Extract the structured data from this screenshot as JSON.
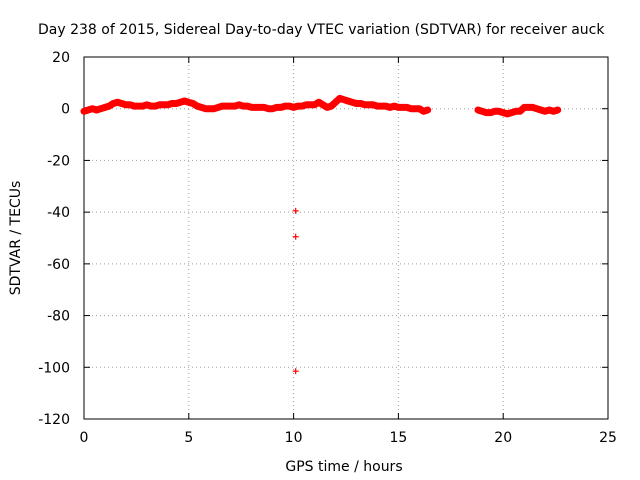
{
  "chart_data": {
    "type": "scatter",
    "title": "Day 238 of 2015, Sidereal Day-to-day VTEC variation (SDTVAR) for receiver auck",
    "xlabel": "GPS time / hours",
    "ylabel": "SDTVAR / TECUs",
    "xlim": [
      0,
      25
    ],
    "ylim": [
      -120,
      20
    ],
    "xticks": [
      0,
      5,
      10,
      15,
      20,
      25
    ],
    "yticks": [
      -120,
      -100,
      -80,
      -60,
      -40,
      -20,
      0,
      20
    ],
    "x_tick_labels": [
      "0",
      "5",
      "10",
      "15",
      "20",
      "25"
    ],
    "y_tick_labels": [
      "-120",
      "-100",
      "-80",
      "-60",
      "-40",
      "-20",
      "0",
      "20"
    ],
    "grid": true,
    "marker": "+",
    "color": "#ff0000",
    "series": [
      {
        "name": "SDTVAR",
        "x": [
          0.0,
          0.2,
          0.4,
          0.6,
          0.8,
          1.0,
          1.2,
          1.4,
          1.6,
          1.8,
          2.0,
          2.2,
          2.4,
          2.6,
          2.8,
          3.0,
          3.2,
          3.4,
          3.6,
          3.8,
          4.0,
          4.2,
          4.4,
          4.6,
          4.8,
          5.0,
          5.2,
          5.4,
          5.6,
          5.8,
          6.0,
          6.2,
          6.4,
          6.6,
          6.8,
          7.0,
          7.2,
          7.4,
          7.6,
          7.8,
          8.0,
          8.2,
          8.4,
          8.6,
          8.8,
          9.0,
          9.2,
          9.4,
          9.6,
          9.8,
          10.0,
          10.1,
          10.1,
          10.1,
          10.2,
          10.4,
          10.6,
          10.8,
          11.0,
          11.2,
          11.4,
          11.6,
          11.8,
          12.0,
          12.2,
          12.4,
          12.6,
          12.8,
          13.0,
          13.2,
          13.4,
          13.6,
          13.8,
          14.0,
          14.2,
          14.4,
          14.6,
          14.8,
          15.0,
          15.2,
          15.4,
          15.6,
          15.8,
          16.0,
          16.2,
          16.4,
          18.8,
          19.0,
          19.2,
          19.4,
          19.6,
          19.8,
          20.0,
          20.2,
          20.4,
          20.6,
          20.8,
          21.0,
          21.2,
          21.4,
          21.6,
          21.8,
          22.0,
          22.2,
          22.4,
          22.6
        ],
        "y": [
          -1.0,
          -0.5,
          0.0,
          -0.5,
          0.0,
          0.5,
          1.0,
          2.0,
          2.5,
          2.0,
          1.5,
          1.5,
          1.0,
          1.0,
          1.0,
          1.5,
          1.0,
          1.0,
          1.5,
          1.5,
          1.5,
          2.0,
          2.0,
          2.5,
          3.0,
          2.5,
          2.0,
          1.0,
          0.5,
          0.0,
          0.0,
          0.0,
          0.5,
          1.0,
          1.0,
          1.0,
          1.0,
          1.5,
          1.0,
          1.0,
          0.5,
          0.5,
          0.5,
          0.5,
          0.0,
          0.0,
          0.5,
          0.5,
          1.0,
          1.0,
          0.5,
          -39.5,
          -49.5,
          -101.5,
          1.0,
          1.0,
          1.5,
          1.5,
          1.5,
          2.5,
          1.5,
          0.5,
          1.0,
          2.5,
          4.0,
          3.5,
          3.0,
          2.5,
          2.0,
          2.0,
          1.5,
          1.5,
          1.5,
          1.0,
          1.0,
          1.0,
          0.5,
          1.0,
          0.5,
          0.5,
          0.5,
          0.0,
          0.0,
          0.0,
          -1.0,
          -0.5,
          -0.5,
          -1.0,
          -1.5,
          -1.5,
          -1.0,
          -1.0,
          -1.5,
          -2.0,
          -1.5,
          -1.0,
          -1.0,
          0.5,
          0.5,
          0.5,
          0.0,
          -0.5,
          -1.0,
          -0.5,
          -1.0,
          -0.5
        ]
      }
    ]
  }
}
